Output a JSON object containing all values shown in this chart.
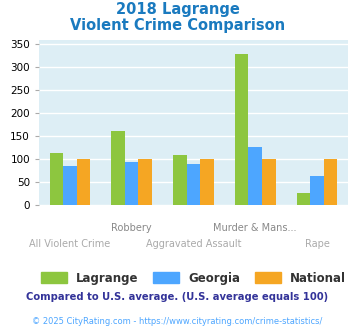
{
  "title_line1": "2018 Lagrange",
  "title_line2": "Violent Crime Comparison",
  "title_color": "#1a7abf",
  "categories": [
    "All Violent Crime",
    "Robbery",
    "Aggravated Assault",
    "Murder & Mans...",
    "Rape"
  ],
  "series": {
    "Lagrange": [
      113,
      160,
      108,
      328,
      25
    ],
    "Georgia": [
      85,
      93,
      88,
      125,
      62
    ],
    "National": [
      100,
      100,
      100,
      100,
      100
    ]
  },
  "colors": {
    "Lagrange": "#8dc63f",
    "Georgia": "#4da6ff",
    "National": "#f5a623"
  },
  "ylim": [
    0,
    360
  ],
  "yticks": [
    0,
    50,
    100,
    150,
    200,
    250,
    300,
    350
  ],
  "background_color": "#ddeef5",
  "grid_color": "#ffffff",
  "footnote1": "Compared to U.S. average. (U.S. average equals 100)",
  "footnote2": "© 2025 CityRating.com - https://www.cityrating.com/crime-statistics/",
  "footnote1_color": "#333399",
  "footnote2_color": "#4da6ff",
  "bar_width": 0.22
}
